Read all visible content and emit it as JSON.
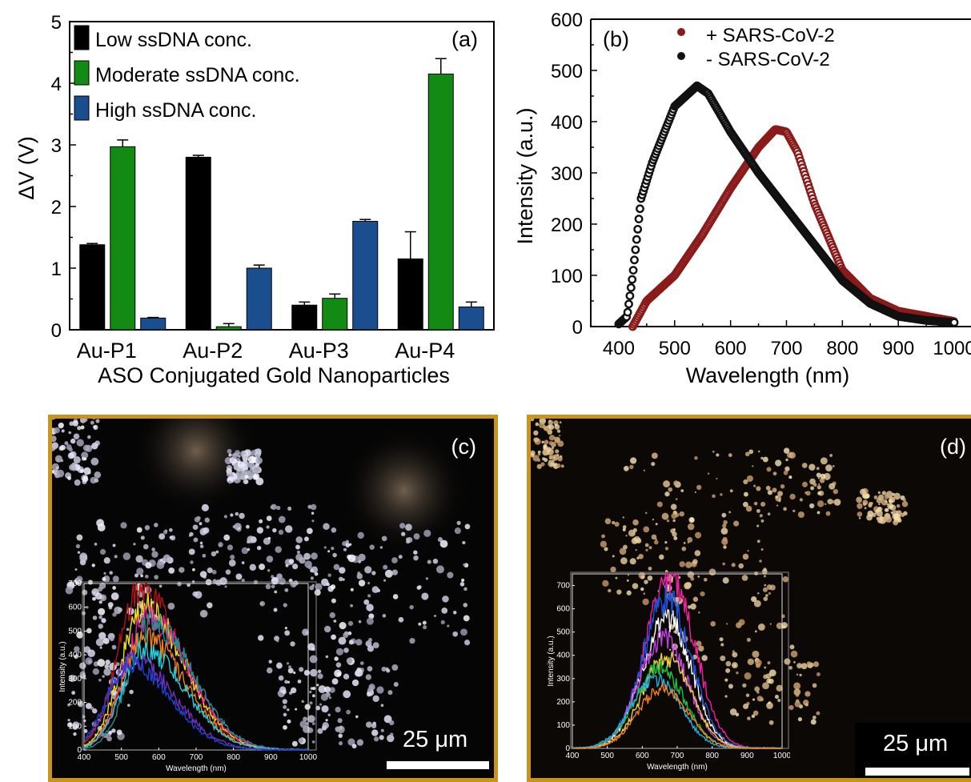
{
  "chart_data": [
    {
      "panel": "(a)",
      "type": "bar",
      "categories": [
        "Au-P1",
        "Au-P2",
        "Au-P3",
        "Au-P4"
      ],
      "xlabel": "ASO Conjugated Gold Nanoparticles",
      "ylabel": "ΔV (V)",
      "ylim": [
        0,
        5
      ],
      "yticks": [
        "0",
        "1",
        "2",
        "3",
        "4",
        "5"
      ],
      "legend_position": "top-left",
      "series": [
        {
          "name": "Low ssDNA conc.",
          "color": "#000000",
          "values": [
            1.38,
            2.8,
            0.4,
            1.15
          ],
          "errors": [
            0.02,
            0.03,
            0.05,
            0.44
          ]
        },
        {
          "name": "Moderate ssDNA conc.",
          "color": "#138a13",
          "values": [
            2.97,
            0.05,
            0.51,
            4.15
          ],
          "errors": [
            0.11,
            0.05,
            0.07,
            0.25
          ]
        },
        {
          "name": "High ssDNA conc.",
          "color": "#1b4e8e",
          "values": [
            0.19,
            1.0,
            1.76,
            0.37
          ],
          "errors": [
            0.01,
            0.05,
            0.03,
            0.08
          ]
        }
      ]
    },
    {
      "panel": "(b)",
      "type": "scatter",
      "xlabel": "Wavelength (nm)",
      "ylabel": "Intensity (a.u.)",
      "xlim": [
        350,
        1030
      ],
      "ylim": [
        0,
        600
      ],
      "xticks": [
        "400",
        "500",
        "600",
        "700",
        "800",
        "900",
        "1000"
      ],
      "yticks": [
        "0",
        "100",
        "200",
        "300",
        "400",
        "500",
        "600"
      ],
      "legend_position": "top-left",
      "series": [
        {
          "name": "+ SARS-CoV-2",
          "color": "#8b1a1a",
          "x": [
            425,
            450,
            500,
            550,
            600,
            650,
            680,
            700,
            720,
            750,
            800,
            850,
            900,
            950,
            1000
          ],
          "y": [
            0,
            50,
            100,
            180,
            270,
            350,
            385,
            380,
            340,
            240,
            110,
            55,
            30,
            20,
            10
          ]
        },
        {
          "name": "-  SARS-CoV-2",
          "color": "#111111",
          "x": [
            400,
            415,
            425,
            440,
            460,
            500,
            540,
            560,
            600,
            650,
            700,
            750,
            800,
            850,
            900,
            950,
            1000
          ],
          "y": [
            5,
            20,
            100,
            250,
            320,
            430,
            470,
            455,
            380,
            300,
            230,
            160,
            90,
            45,
            20,
            12,
            8
          ]
        }
      ]
    },
    {
      "panel": "(c)",
      "type": "line",
      "xlabel": "Wavelength (nm)",
      "ylabel": "Intensity (a.u.)",
      "xlim": [
        400,
        1000
      ],
      "ylim": [
        0,
        700
      ],
      "xticks": [
        "400",
        "500",
        "600",
        "700",
        "800",
        "900",
        "1000"
      ],
      "yticks": [
        "0",
        "100",
        "200",
        "300",
        "400",
        "500",
        "600",
        "700"
      ],
      "series_peaks": [
        {
          "color": "#b01414",
          "peak_x": 550,
          "peak_y": 670
        },
        {
          "color": "#f0e020",
          "peak_x": 560,
          "peak_y": 600
        },
        {
          "color": "#e020a0",
          "peak_x": 570,
          "peak_y": 560
        },
        {
          "color": "#209090",
          "peak_x": 580,
          "peak_y": 530
        },
        {
          "color": "#f08020",
          "peak_x": 560,
          "peak_y": 470
        },
        {
          "color": "#20d0e0",
          "peak_x": 560,
          "peak_y": 420
        },
        {
          "color": "#7030c0",
          "peak_x": 530,
          "peak_y": 380
        },
        {
          "color": "#2040d0",
          "peak_x": 520,
          "peak_y": 360
        }
      ],
      "scale_label": "25 μm"
    },
    {
      "panel": "(d)",
      "type": "line",
      "xlabel": "Wavelength (nm)",
      "ylabel": "Intensity (a.u.)",
      "xlim": [
        400,
        1000
      ],
      "ylim": [
        0,
        750
      ],
      "xticks": [
        "400",
        "500",
        "600",
        "700",
        "800",
        "900",
        "1000"
      ],
      "yticks": [
        "0",
        "100",
        "200",
        "300",
        "400",
        "500",
        "600",
        "700"
      ],
      "series_peaks": [
        {
          "color": "#f020a0",
          "peak_x": 680,
          "peak_y": 740
        },
        {
          "color": "#ffffff",
          "peak_x": 670,
          "peak_y": 560
        },
        {
          "color": "#2050e0",
          "peak_x": 670,
          "peak_y": 640
        },
        {
          "color": "#c040e0",
          "peak_x": 660,
          "peak_y": 470
        },
        {
          "color": "#f0d040",
          "peak_x": 670,
          "peak_y": 390
        },
        {
          "color": "#20c040",
          "peak_x": 650,
          "peak_y": 350
        },
        {
          "color": "#20b0e0",
          "peak_x": 640,
          "peak_y": 300
        },
        {
          "color": "#f08020",
          "peak_x": 660,
          "peak_y": 260
        }
      ],
      "scale_label": "25 μm"
    }
  ]
}
